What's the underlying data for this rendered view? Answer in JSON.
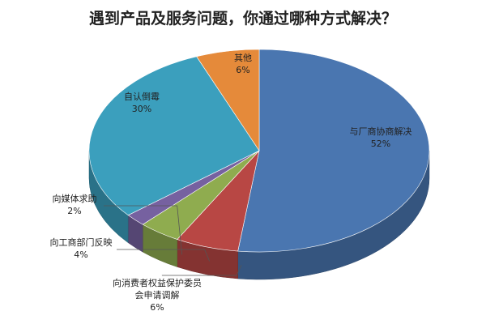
{
  "chart_data": {
    "type": "pie",
    "title": "遇到产品及服务问题，你通过哪种方式解决？",
    "categories": [
      "与厂商协商解决",
      "向消费者权益保护委员会申请调解",
      "向工商部门反映",
      "向媒体求助",
      "自认倒霉",
      "其他"
    ],
    "values": [
      52,
      6,
      4,
      2,
      30,
      6
    ],
    "value_labels": [
      "52%",
      "6%",
      "4%",
      "2%",
      "30%",
      "6%"
    ],
    "colors": [
      "#4a76b0",
      "#b84744",
      "#8fac4f",
      "#7661a0",
      "#3b9fbd",
      "#e58a3a"
    ]
  }
}
